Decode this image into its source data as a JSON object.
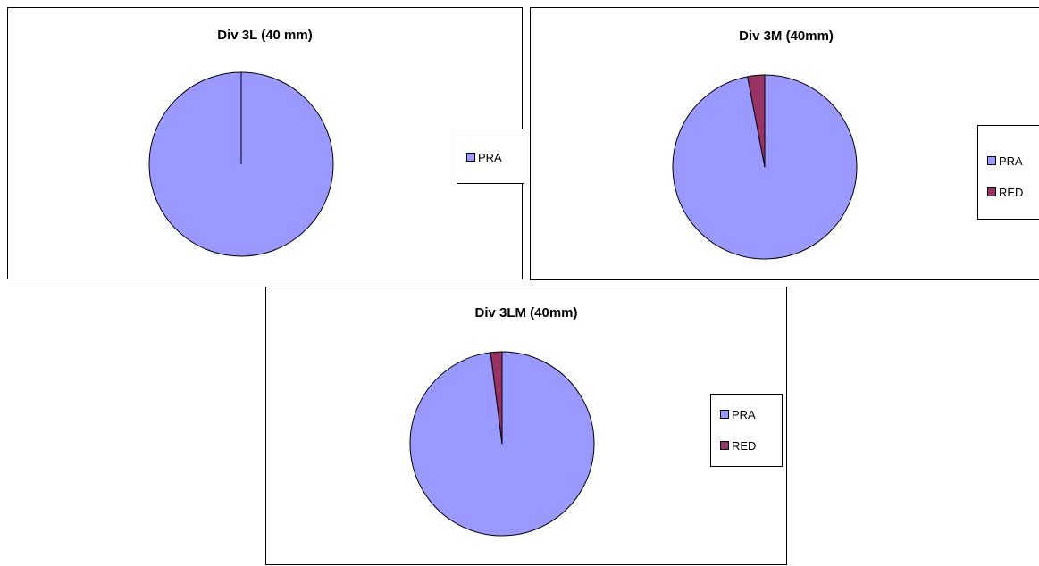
{
  "chart_data": [
    {
      "type": "pie",
      "title": "Div 3L (40 mm)",
      "categories": [
        "PRA"
      ],
      "values": [
        100
      ],
      "colors": [
        "#9999ff"
      ],
      "legend": [
        "PRA"
      ],
      "legend_position": "right"
    },
    {
      "type": "pie",
      "title": "Div 3M (40mm)",
      "categories": [
        "PRA",
        "RED"
      ],
      "values": [
        97,
        3
      ],
      "colors": [
        "#9999ff",
        "#993366"
      ],
      "legend": [
        "PRA",
        "RED"
      ],
      "legend_position": "right"
    },
    {
      "type": "pie",
      "title": "Div 3LM (40mm)",
      "categories": [
        "PRA",
        "RED"
      ],
      "values": [
        98,
        2
      ],
      "colors": [
        "#9999ff",
        "#993366"
      ],
      "legend": [
        "PRA",
        "RED"
      ],
      "legend_position": "right"
    }
  ]
}
